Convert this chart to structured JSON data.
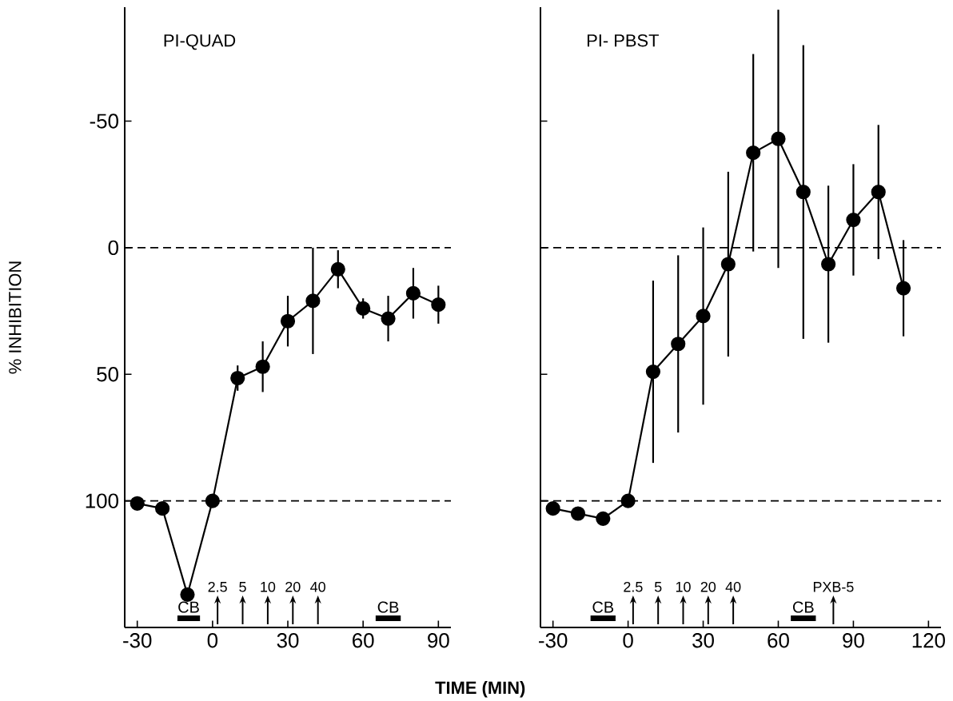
{
  "chart_data": [
    {
      "type": "line",
      "title": "PI-QUAD",
      "xlabel": "TIME (MIN)",
      "ylabel": "% INHIBITION",
      "xlim": [
        -35,
        95
      ],
      "xticks": [
        -30,
        0,
        30,
        60,
        90
      ],
      "ylim": [
        150,
        -95
      ],
      "yticks": [
        -50,
        0,
        50,
        100
      ],
      "marker": "circle",
      "line_style": "solid",
      "series": [
        {
          "color": "#000000",
          "x": [
            -30,
            -20,
            -10,
            0,
            10,
            20,
            30,
            40,
            50,
            60,
            70,
            80,
            90
          ],
          "values": [
            101,
            103,
            137,
            100,
            51.5,
            47,
            29,
            21,
            8.5,
            24,
            28,
            18,
            22.5
          ],
          "errors": [
            null,
            null,
            null,
            null,
            5,
            10,
            10,
            21,
            7.5,
            4,
            9,
            10,
            7.5
          ]
        }
      ],
      "ref_lines": [
        {
          "axis": "y",
          "value": 0,
          "line_style": "dashed",
          "color": "#000000"
        },
        {
          "axis": "y",
          "value": 100,
          "line_style": "dashed",
          "color": "#000000"
        }
      ],
      "annotations": [
        "CB",
        "2.5",
        "5",
        "10",
        "20",
        "40",
        "CB"
      ]
    },
    {
      "type": "line",
      "title": "PI- PBST",
      "xlim": [
        -35,
        125
      ],
      "xticks": [
        -30,
        0,
        30,
        60,
        90,
        120
      ],
      "ylim": [
        150,
        -95
      ],
      "yticks": [
        -50,
        0,
        50,
        100
      ],
      "tick_labels": "x",
      "marker": "circle",
      "line_style": "solid",
      "series": [
        {
          "color": "#000000",
          "x": [
            -30,
            -20,
            -10,
            0,
            10,
            20,
            30,
            40,
            50,
            60,
            70,
            80,
            90,
            100,
            110
          ],
          "values": [
            103,
            105,
            107,
            100,
            49,
            38,
            27,
            6.5,
            -37.5,
            -43,
            -22,
            6.5,
            -11,
            -22,
            16
          ],
          "errors": [
            null,
            null,
            null,
            null,
            36,
            35,
            35,
            36.5,
            39,
            51,
            58,
            31,
            22,
            26.5,
            19
          ]
        }
      ],
      "ref_lines": [
        {
          "axis": "y",
          "value": 0,
          "line_style": "dashed",
          "color": "#000000"
        },
        {
          "axis": "y",
          "value": 100,
          "line_style": "dashed",
          "color": "#000000"
        }
      ],
      "annotations": [
        "CB",
        "2.5",
        "5",
        "10",
        "20",
        "40",
        "CB",
        "PXB-5"
      ]
    }
  ]
}
